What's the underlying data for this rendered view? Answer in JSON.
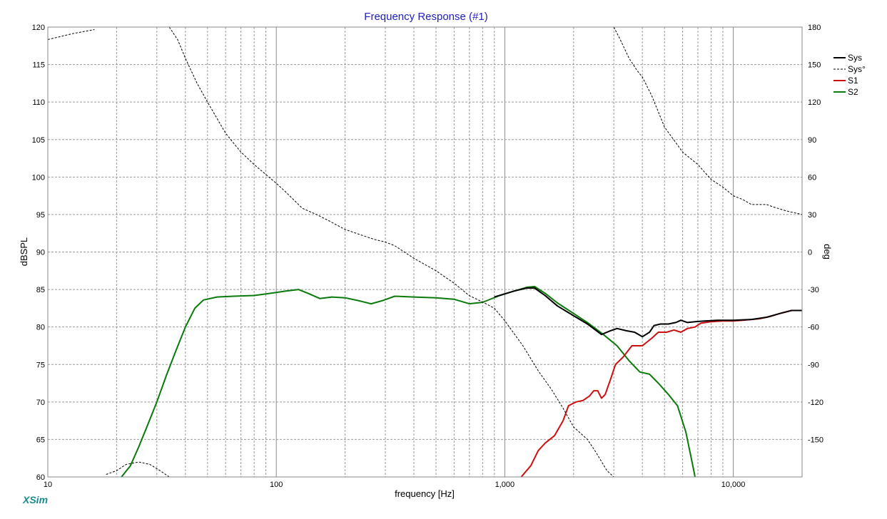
{
  "chart_data": {
    "type": "line",
    "title": "Frequency Response (#1)",
    "xlabel": "frequency [Hz]",
    "ylabel": "dBSPL",
    "y2label": "deg",
    "xscale": "log",
    "xlim": [
      10,
      20000
    ],
    "ylim": [
      60,
      120
    ],
    "y2lim": [
      -180,
      180
    ],
    "x_ticks": [
      10,
      100,
      1000,
      10000
    ],
    "x_tick_labels": [
      "10",
      "100",
      "1,000",
      "10,000"
    ],
    "y_ticks": [
      60,
      65,
      70,
      75,
      80,
      85,
      90,
      95,
      100,
      105,
      110,
      115,
      120
    ],
    "y_tick_labels": [
      "60",
      "65",
      "70",
      "75",
      "80",
      "85",
      "90",
      "95",
      "100",
      "105",
      "110",
      "115",
      "120"
    ],
    "y2_ticks": [
      -150,
      -120,
      -90,
      -60,
      -30,
      0,
      30,
      60,
      90,
      120,
      150,
      180
    ],
    "y2_tick_labels": [
      "-150",
      "-120",
      "-90",
      "-60",
      "-30",
      "0",
      "30",
      "60",
      "90",
      "120",
      "150",
      "180"
    ],
    "grid": true,
    "legend_position": "top-right",
    "brand_label": "XSim",
    "series": [
      {
        "name": "S2",
        "color": "#0a7a0a",
        "axis": "left",
        "style": "solid",
        "points": [
          [
            21,
            60
          ],
          [
            23,
            61.5
          ],
          [
            25,
            64
          ],
          [
            27,
            66.5
          ],
          [
            30,
            70
          ],
          [
            33,
            73.5
          ],
          [
            36,
            76.5
          ],
          [
            40,
            80
          ],
          [
            44,
            82.5
          ],
          [
            48,
            83.6
          ],
          [
            55,
            84
          ],
          [
            65,
            84.1
          ],
          [
            80,
            84.2
          ],
          [
            95,
            84.5
          ],
          [
            110,
            84.8
          ],
          [
            125,
            85
          ],
          [
            140,
            84.4
          ],
          [
            155,
            83.8
          ],
          [
            175,
            84
          ],
          [
            200,
            83.9
          ],
          [
            230,
            83.5
          ],
          [
            260,
            83.1
          ],
          [
            290,
            83.5
          ],
          [
            330,
            84.1
          ],
          [
            400,
            84
          ],
          [
            500,
            83.9
          ],
          [
            600,
            83.7
          ],
          [
            700,
            83.1
          ],
          [
            800,
            83.3
          ],
          [
            950,
            84.2
          ],
          [
            1100,
            84.8
          ],
          [
            1250,
            85.3
          ],
          [
            1350,
            85.4
          ],
          [
            1500,
            84.5
          ],
          [
            1700,
            83.2
          ],
          [
            2000,
            81.8
          ],
          [
            2300,
            80.6
          ],
          [
            2700,
            79
          ],
          [
            3100,
            77.5
          ],
          [
            3500,
            75.5
          ],
          [
            3900,
            74
          ],
          [
            4300,
            73.7
          ],
          [
            4700,
            72.5
          ],
          [
            5200,
            71
          ],
          [
            5700,
            69.5
          ],
          [
            6200,
            66
          ],
          [
            6600,
            62
          ],
          [
            6800,
            60
          ]
        ]
      },
      {
        "name": "S1",
        "color": "#cc1010",
        "axis": "left",
        "style": "solid",
        "points": [
          [
            1180,
            60
          ],
          [
            1300,
            61.5
          ],
          [
            1400,
            63.5
          ],
          [
            1500,
            64.5
          ],
          [
            1650,
            65.5
          ],
          [
            1800,
            67.5
          ],
          [
            1900,
            69.5
          ],
          [
            2050,
            70
          ],
          [
            2200,
            70.2
          ],
          [
            2350,
            70.8
          ],
          [
            2450,
            71.5
          ],
          [
            2550,
            71.5
          ],
          [
            2650,
            70.5
          ],
          [
            2750,
            71
          ],
          [
            2900,
            73
          ],
          [
            3050,
            75
          ],
          [
            3300,
            76
          ],
          [
            3600,
            77.5
          ],
          [
            4000,
            77.5
          ],
          [
            4400,
            78.5
          ],
          [
            4700,
            79.3
          ],
          [
            5100,
            79.3
          ],
          [
            5500,
            79.6
          ],
          [
            5900,
            79.3
          ],
          [
            6300,
            79.8
          ],
          [
            6800,
            80
          ],
          [
            7200,
            80.5
          ],
          [
            8000,
            80.7
          ],
          [
            9000,
            80.8
          ],
          [
            10000,
            80.8
          ],
          [
            11000,
            80.9
          ],
          [
            12000,
            81
          ],
          [
            13000,
            81.1
          ],
          [
            14500,
            81.4
          ],
          [
            16000,
            81.8
          ],
          [
            18000,
            82.2
          ],
          [
            20000,
            82.2
          ]
        ]
      },
      {
        "name": "Sys",
        "color": "#000000",
        "axis": "left",
        "style": "solid",
        "points": [
          [
            900,
            84
          ],
          [
            1100,
            84.8
          ],
          [
            1250,
            85.2
          ],
          [
            1350,
            85.2
          ],
          [
            1500,
            84.2
          ],
          [
            1700,
            82.8
          ],
          [
            2000,
            81.5
          ],
          [
            2300,
            80.4
          ],
          [
            2650,
            79
          ],
          [
            2900,
            79.5
          ],
          [
            3100,
            79.8
          ],
          [
            3400,
            79.5
          ],
          [
            3700,
            79.3
          ],
          [
            4000,
            78.7
          ],
          [
            4300,
            79.3
          ],
          [
            4500,
            80.2
          ],
          [
            4800,
            80.4
          ],
          [
            5200,
            80.4
          ],
          [
            5600,
            80.6
          ],
          [
            5900,
            80.9
          ],
          [
            6300,
            80.6
          ],
          [
            6800,
            80.7
          ],
          [
            7500,
            80.8
          ],
          [
            8500,
            80.9
          ],
          [
            10000,
            80.9
          ],
          [
            12000,
            81
          ],
          [
            14000,
            81.3
          ],
          [
            16000,
            81.8
          ],
          [
            18000,
            82.2
          ],
          [
            20000,
            82.2
          ]
        ]
      },
      {
        "name": "Sys°",
        "color": "#000000",
        "axis": "right",
        "style": "dashed",
        "segments": [
          [
            [
              10,
              170
            ],
            [
              13,
              175
            ],
            [
              16,
              178
            ]
          ],
          [
            [
              18,
              -178
            ],
            [
              20,
              -175
            ],
            [
              22,
              -170
            ],
            [
              25,
              -168
            ],
            [
              28,
              -170
            ],
            [
              31,
              -175
            ],
            [
              34,
              -180
            ]
          ],
          [
            [
              34,
              180
            ],
            [
              37,
              170
            ],
            [
              40,
              155
            ],
            [
              45,
              135
            ],
            [
              50,
              120
            ],
            [
              60,
              95
            ],
            [
              70,
              80
            ],
            [
              80,
              70
            ],
            [
              90,
              62
            ],
            [
              100,
              55
            ],
            [
              110,
              48
            ],
            [
              130,
              35
            ],
            [
              150,
              30
            ],
            [
              170,
              25
            ],
            [
              200,
              18
            ],
            [
              250,
              12
            ],
            [
              270,
              10
            ],
            [
              300,
              8
            ],
            [
              330,
              5
            ],
            [
              400,
              -5
            ],
            [
              500,
              -15
            ],
            [
              600,
              -25
            ],
            [
              700,
              -35
            ],
            [
              800,
              -40
            ],
            [
              900,
              -45
            ],
            [
              1000,
              -55
            ],
            [
              1200,
              -75
            ],
            [
              1400,
              -95
            ],
            [
              1600,
              -110
            ],
            [
              1800,
              -125
            ],
            [
              2000,
              -140
            ],
            [
              2300,
              -150
            ],
            [
              2500,
              -160
            ],
            [
              2800,
              -175
            ],
            [
              3000,
              -180
            ]
          ],
          [
            [
              3000,
              180
            ],
            [
              3200,
              170
            ],
            [
              3500,
              155
            ],
            [
              3800,
              145
            ],
            [
              4000,
              140
            ],
            [
              4400,
              125
            ],
            [
              5000,
              100
            ],
            [
              6000,
              80
            ],
            [
              7000,
              70
            ],
            [
              8000,
              58
            ],
            [
              9000,
              52
            ],
            [
              10000,
              45
            ],
            [
              11000,
              42
            ],
            [
              12000,
              38
            ],
            [
              14000,
              38
            ],
            [
              15000,
              36
            ],
            [
              17000,
              33
            ],
            [
              20000,
              30
            ]
          ]
        ]
      }
    ]
  }
}
